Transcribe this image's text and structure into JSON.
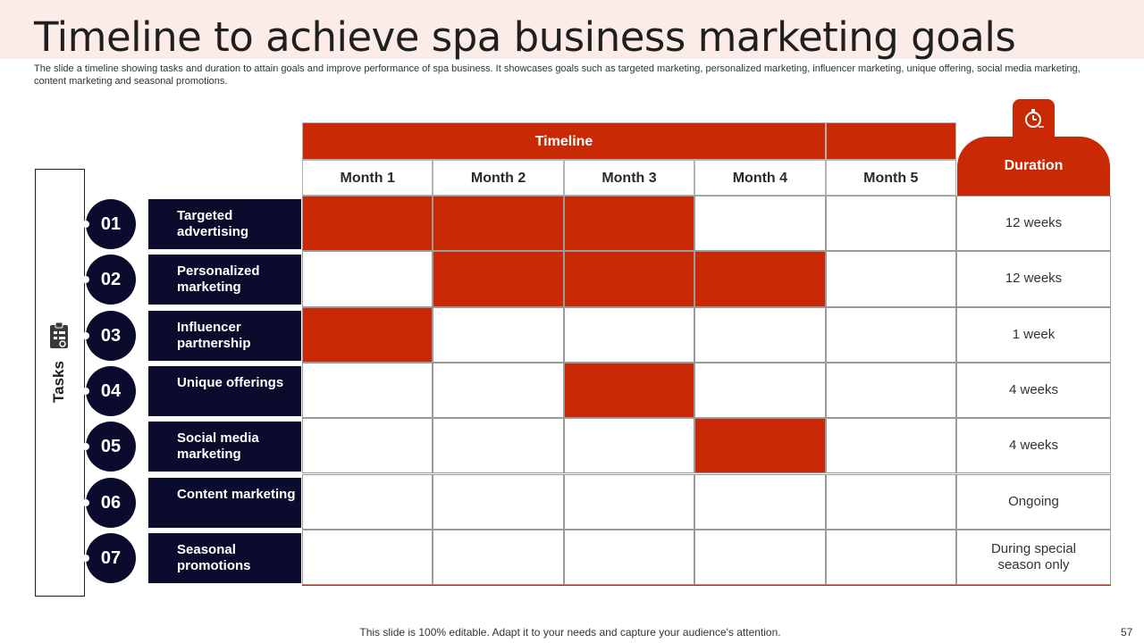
{
  "slide": {
    "title": "Timeline to achieve spa business marketing goals",
    "subtitle": "The slide a timeline showing tasks and duration to attain goals and improve performance of spa business. It showcases goals such as targeted marketing, personalized marketing, influencer marketing, unique offering, social media marketing, content marketing and seasonal promotions.",
    "footer": "This slide is 100% editable. Adapt it to your needs and capture your audience's attention.",
    "page_number": "57"
  },
  "colors": {
    "accent": "#c92a05",
    "navy": "#0b0b2e",
    "header_band": "#fcece8"
  },
  "tasks_label": "Tasks",
  "icons": {
    "tasks": "clipboard-icon",
    "duration": "stopwatch-icon"
  },
  "timeline_header": "Timeline",
  "months": [
    "Month 1",
    "Month 2",
    "Month 3",
    "Month 4",
    "Month 5"
  ],
  "duration_header": "Duration",
  "rows": [
    {
      "num": "01",
      "task": "Targeted advertising",
      "active": [
        1,
        1,
        1,
        0,
        0
      ],
      "duration": "12 weeks"
    },
    {
      "num": "02",
      "task": "Personalized marketing",
      "active": [
        0,
        1,
        1,
        1,
        0
      ],
      "duration": "12 weeks"
    },
    {
      "num": "03",
      "task": "Influencer partnership",
      "active": [
        1,
        0,
        0,
        0,
        0
      ],
      "duration": "1 week"
    },
    {
      "num": "04",
      "task": "Unique offerings",
      "active": [
        0,
        0,
        1,
        0,
        0
      ],
      "duration": "4 weeks"
    },
    {
      "num": "05",
      "task": "Social media marketing",
      "active": [
        0,
        0,
        0,
        1,
        0
      ],
      "duration": "4 weeks"
    },
    {
      "num": "06",
      "task": "Content marketing",
      "active": [
        0,
        0,
        0,
        0,
        0
      ],
      "duration": "Ongoing"
    },
    {
      "num": "07",
      "task": "Seasonal promotions",
      "active": [
        0,
        0,
        0,
        0,
        0
      ],
      "duration": "During special season only"
    }
  ]
}
